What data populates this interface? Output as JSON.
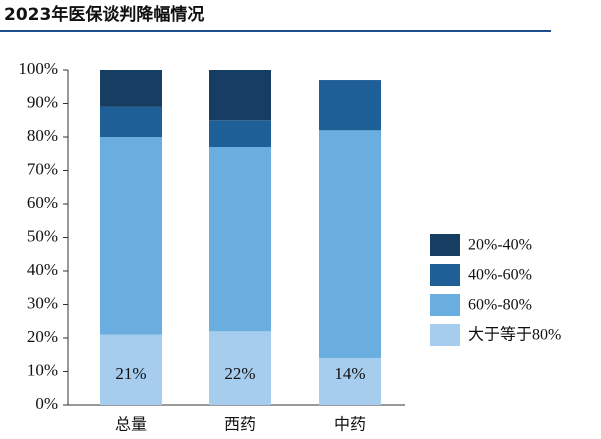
{
  "chart_data": {
    "type": "stacked_bar",
    "title": "2023年医保谈判降幅情况",
    "categories": [
      "总量",
      "西药",
      "中药"
    ],
    "series": [
      {
        "name": "大于等于80%",
        "color": "#a6cdee",
        "values": [
          21,
          22,
          14
        ],
        "value_labels": [
          "21%",
          "22%",
          "14%"
        ]
      },
      {
        "name": "60%-80%",
        "color": "#6aaee0",
        "values": [
          59,
          55,
          68
        ]
      },
      {
        "name": "40%-60%",
        "color": "#1f5f98",
        "values": [
          9,
          8,
          15
        ]
      },
      {
        "name": "20%-40%",
        "color": "#163d62",
        "values": [
          11,
          15,
          0
        ]
      }
    ],
    "ylim": [
      0,
      100
    ],
    "yticks": [
      {
        "value": 0,
        "label": "0%"
      },
      {
        "value": 10,
        "label": "10%"
      },
      {
        "value": 20,
        "label": "20%"
      },
      {
        "value": 30,
        "label": "30%"
      },
      {
        "value": 40,
        "label": "40%"
      },
      {
        "value": 50,
        "label": "50%"
      },
      {
        "value": 60,
        "label": "60%"
      },
      {
        "value": 70,
        "label": "70%"
      },
      {
        "value": 80,
        "label": "80%"
      },
      {
        "value": 90,
        "label": "90%"
      },
      {
        "value": 100,
        "label": "100%"
      }
    ]
  }
}
